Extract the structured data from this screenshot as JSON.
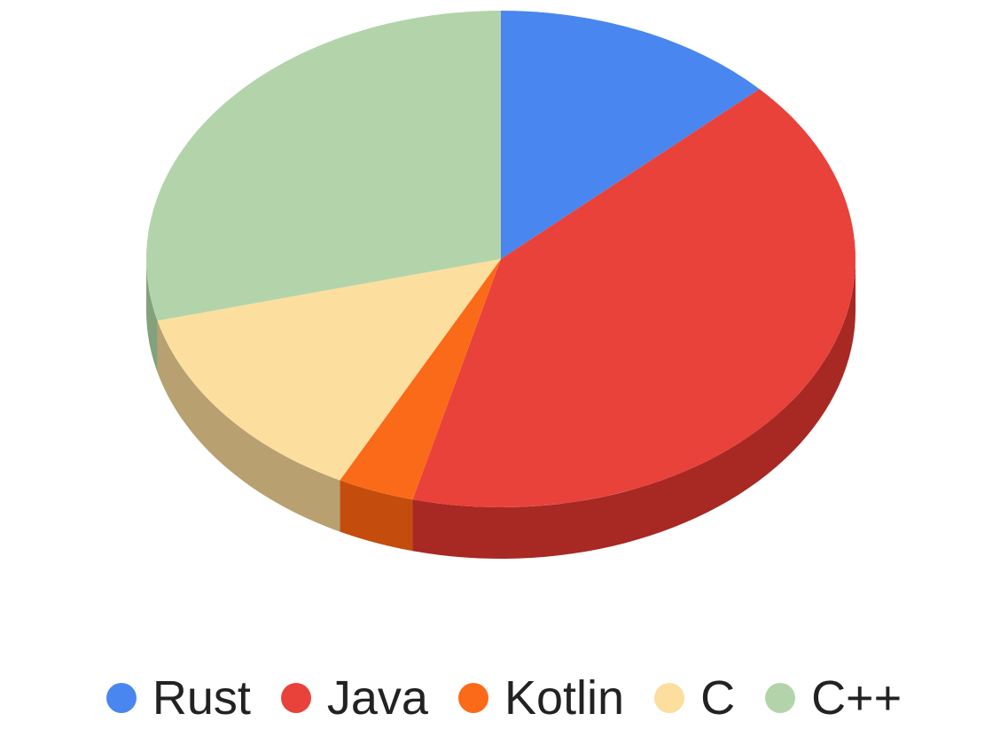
{
  "chart_data": {
    "type": "pie",
    "style": "3d",
    "title": "",
    "categories": [
      "Rust",
      "Java",
      "Kotlin",
      "C",
      "C++"
    ],
    "values": [
      13.0,
      41.0,
      3.5,
      13.5,
      29.0
    ],
    "colors": [
      "#4a86ef",
      "#e8423a",
      "#fb6a18",
      "#fcdf9e",
      "#b3d4ab"
    ],
    "side_colors": [
      "#2f5fae",
      "#a82824",
      "#c44d0e",
      "#b8a070",
      "#83a17c"
    ],
    "legend": {
      "position": "bottom",
      "items": [
        {
          "label": "Rust",
          "color": "#4a86ef"
        },
        {
          "label": "Java",
          "color": "#e8423a"
        },
        {
          "label": "Kotlin",
          "color": "#fb6a18"
        },
        {
          "label": "C",
          "color": "#fcdf9e"
        },
        {
          "label": "C++",
          "color": "#b3d4ab"
        }
      ]
    }
  }
}
